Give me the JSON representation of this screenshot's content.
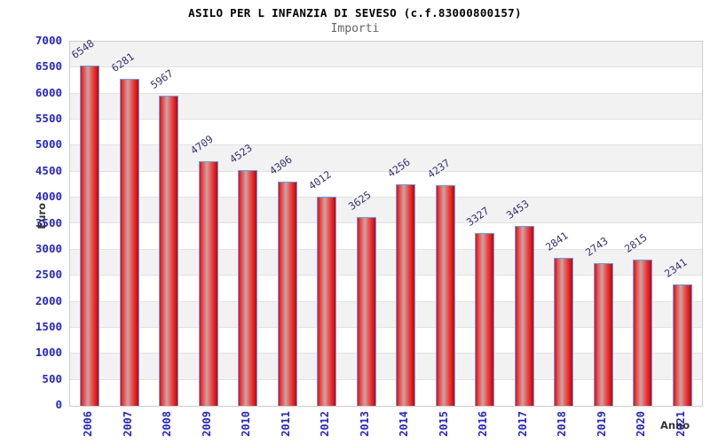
{
  "chart_data": {
    "type": "bar",
    "title": "ASILO PER L INFANZIA DI SEVESO (c.f.83000800157)",
    "subtitle": "Importi",
    "xlabel": "Anno",
    "ylabel": "Euro",
    "categories": [
      "2006",
      "2007",
      "2008",
      "2009",
      "2010",
      "2011",
      "2012",
      "2013",
      "2014",
      "2015",
      "2016",
      "2017",
      "2018",
      "2019",
      "2020",
      "2021"
    ],
    "values": [
      6548,
      6281,
      5967,
      4709,
      4523,
      4306,
      4012,
      3625,
      4256,
      4237,
      3327,
      3453,
      2841,
      2743,
      2815,
      2341
    ],
    "ylim": [
      0,
      7000
    ],
    "ytick_step": 500,
    "grid": "horizontal-bands",
    "legend": "none",
    "colors": {
      "bar_fill_edge": "#dd1111",
      "bar_fill_center": "#c99f9f",
      "bar_border": "#4da6ff",
      "value_label": "#333377",
      "tick_label": "#2424d8",
      "axis_name_label": "#333333",
      "band_shaded": "#f2f2f2",
      "band_plain": "#ffffff",
      "gridline": "#e2e2e2",
      "plot_border": "#cccccc",
      "title_color": "#000000",
      "subtitle_color": "#666666"
    }
  }
}
